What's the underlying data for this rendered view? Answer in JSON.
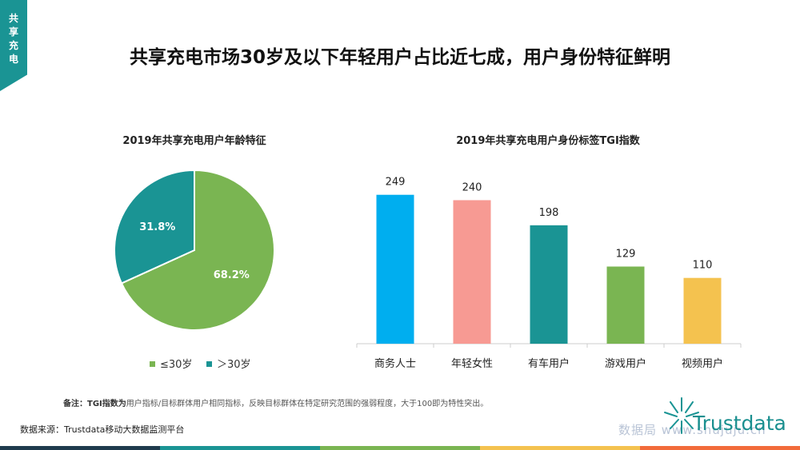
{
  "corner": [
    "共",
    "享",
    "充",
    "电"
  ],
  "page_title": "共享充电市场30岁及以下年轻用户占比近七成，用户身份特征鲜明",
  "colors": {
    "teal": "#1a9494",
    "green": "#7ab552",
    "blue": "#00aeef",
    "pink": "#f79a93",
    "yellow": "#f4c24f",
    "orange": "#f26b3a",
    "axis": "#cccccc"
  },
  "chart_data": [
    {
      "type": "pie",
      "title": "2019年共享充电用户年龄特征",
      "slices": [
        {
          "label": "≤30岁",
          "value": 68.2,
          "display": "68.2%",
          "color": "#7ab552"
        },
        {
          "label": "＞30岁",
          "value": 31.8,
          "display": "31.8%",
          "color": "#1a9494"
        }
      ],
      "legend_placement": "bottom"
    },
    {
      "type": "bar",
      "title": "2019年共享充电用户身份标签TGI指数",
      "categories": [
        "商务人士",
        "年轻女性",
        "有车用户",
        "游戏用户",
        "视频用户"
      ],
      "values": [
        249,
        240,
        198,
        129,
        110
      ],
      "colors": [
        "#00aeef",
        "#f79a93",
        "#1a9494",
        "#7ab552",
        "#f4c24f"
      ],
      "ylim": [
        0,
        270
      ],
      "grid": false
    }
  ],
  "legend": {
    "item1": "≤30岁",
    "item2": "＞30岁"
  },
  "note": {
    "label": "备注：",
    "term": "TGI指数为",
    "text": "用户指标/目标群体用户相同指标，反映目标群体在特定研究范围的强弱程度，大于100即为特性突出。"
  },
  "source": "数据来源：Trustdata移动大数据监测平台",
  "watermark": "数据局 www.shujuju.cn",
  "logo": "Trustdata",
  "bottom_bar_colors": [
    "#1f3b4d",
    "#1a9494",
    "#7ab552",
    "#f4c24f",
    "#f26b3a"
  ]
}
